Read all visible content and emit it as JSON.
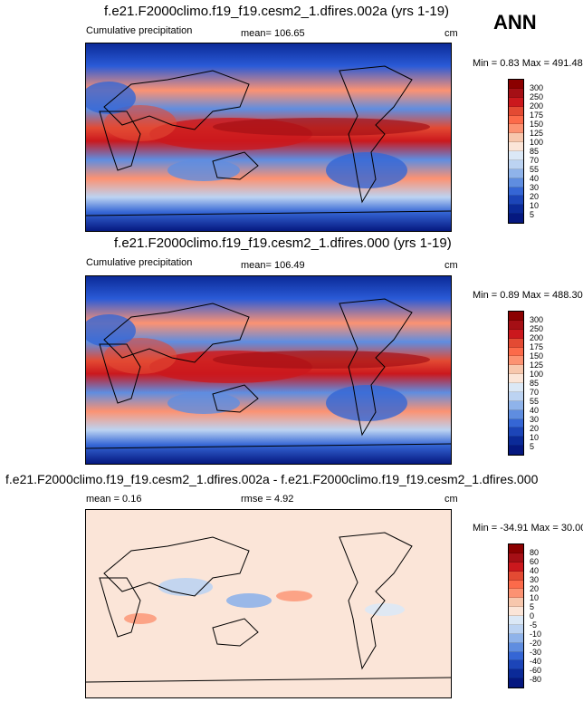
{
  "season": "ANN",
  "colors": {
    "deep_blue": "#0b1f96",
    "blue": "#2a5bd7",
    "light_blue": "#bcd3f2",
    "white": "#f7f7f7",
    "light_red": "#f7c7ad",
    "red": "#e34a33",
    "dark_red": "#8b0000"
  },
  "panels": [
    {
      "title": "f.e21.F2000climo.f19_f19.cesm2_1.dfires.002a (yrs 1-19)",
      "left_label": "Cumulative precipitation",
      "center_label": "mean= 106.65",
      "units": "cm",
      "minmax": "Min =   0.83 Max = 491.48",
      "colorbar_levels": [
        "300",
        "250",
        "200",
        "175",
        "150",
        "125",
        "100",
        "85",
        "70",
        "55",
        "40",
        "30",
        "20",
        "10",
        "5"
      ],
      "colorbar_colors": [
        "#8b0000",
        "#a50f15",
        "#cb181d",
        "#e34a33",
        "#fc6a4a",
        "#fc9272",
        "#f7c7ad",
        "#fbe5d8",
        "#dbe8f6",
        "#bcd3f2",
        "#8fb3ea",
        "#5f8de0",
        "#3566d5",
        "#1c45b8",
        "#0b2a98",
        "#051880"
      ]
    },
    {
      "title": "f.e21.F2000climo.f19_f19.cesm2_1.dfires.000 (yrs 1-19)",
      "left_label": "Cumulative precipitation",
      "center_label": "mean= 106.49",
      "units": "cm",
      "minmax": "Min =   0.89 Max = 488.30",
      "colorbar_levels": [
        "300",
        "250",
        "200",
        "175",
        "150",
        "125",
        "100",
        "85",
        "70",
        "55",
        "40",
        "30",
        "20",
        "10",
        "5"
      ],
      "colorbar_colors": [
        "#8b0000",
        "#a50f15",
        "#cb181d",
        "#e34a33",
        "#fc6a4a",
        "#fc9272",
        "#f7c7ad",
        "#fbe5d8",
        "#dbe8f6",
        "#bcd3f2",
        "#8fb3ea",
        "#5f8de0",
        "#3566d5",
        "#1c45b8",
        "#0b2a98",
        "#051880"
      ]
    },
    {
      "title": "f.e21.F2000climo.f19_f19.cesm2_1.dfires.002a - f.e21.F2000climo.f19_f19.cesm2_1.dfires.000",
      "left_label": "mean =  0.16",
      "center_label": "rmse =  4.92",
      "units": "cm",
      "minmax": "Min = -34.91 Max = 30.00",
      "colorbar_levels": [
        "80",
        "60",
        "40",
        "30",
        "20",
        "10",
        "5",
        "0",
        "-5",
        "-10",
        "-20",
        "-30",
        "-40",
        "-60",
        "-80"
      ],
      "colorbar_colors": [
        "#8b0000",
        "#a50f15",
        "#cb181d",
        "#e34a33",
        "#fc6a4a",
        "#fc9272",
        "#f7c7ad",
        "#fbe5d8",
        "#dbe8f6",
        "#bcd3f2",
        "#8fb3ea",
        "#5f8de0",
        "#3566d5",
        "#1c45b8",
        "#0b2a98",
        "#051880"
      ]
    }
  ]
}
